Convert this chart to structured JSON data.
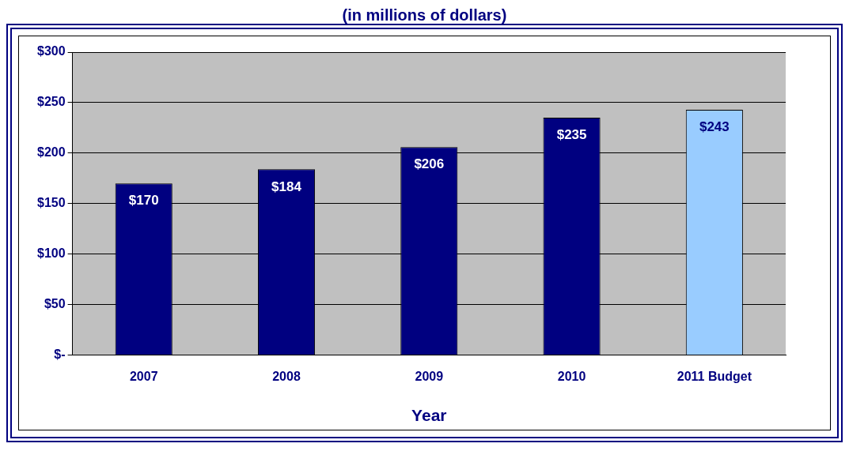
{
  "chart_data": {
    "type": "bar",
    "subtitle": "(in millions of dollars)",
    "xlabel": "Year",
    "categories": [
      "2007",
      "2008",
      "2009",
      "2010",
      "2011 Budget"
    ],
    "values": [
      170,
      184,
      206,
      235,
      243
    ],
    "colors": [
      "#000080",
      "#000080",
      "#000080",
      "#000080",
      "#99ccff"
    ],
    "value_labels": [
      "$170",
      "$184",
      "$206",
      "$235",
      "$243"
    ],
    "ylim": [
      0,
      300
    ],
    "yticks": [
      {
        "value": 0,
        "label": "$-"
      },
      {
        "value": 50,
        "label": "$50"
      },
      {
        "value": 100,
        "label": "$100"
      },
      {
        "value": 150,
        "label": "$150"
      },
      {
        "value": 200,
        "label": "$200"
      },
      {
        "value": 250,
        "label": "$250"
      },
      {
        "value": 300,
        "label": "$300"
      }
    ],
    "grid": "y",
    "legend": false
  }
}
